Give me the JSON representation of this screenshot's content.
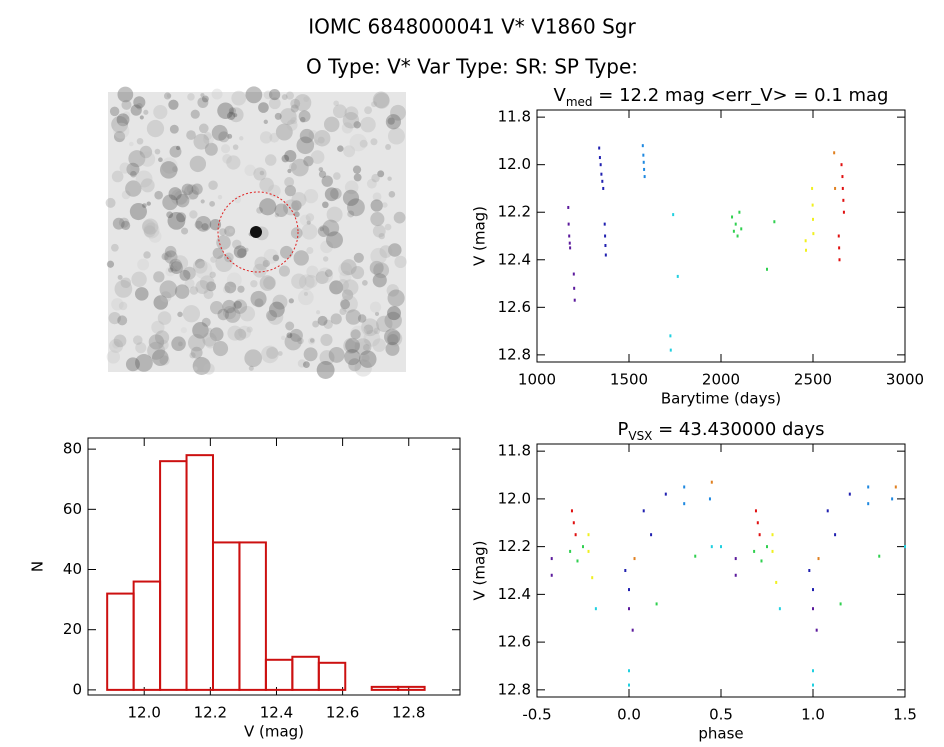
{
  "header": {
    "title": "IOMC 6848000041    V* V1860 Sgr",
    "subtitle": "O Type: V*   Var Type: SR:   SP Type:"
  },
  "chart_data": [
    {
      "type": "scatter",
      "title_parts": [
        "V",
        "med",
        " = 12.2 mag <err_V> = 0.1 mag"
      ],
      "x_label": "Barytime (days)",
      "y_label": "V (mag)",
      "xlim": [
        1000,
        3000
      ],
      "xticks": [
        1000,
        1500,
        2000,
        2500,
        3000
      ],
      "ylim": [
        12.83,
        11.77
      ],
      "yticks": [
        {
          "value": 11.8,
          "label": "11.8"
        },
        {
          "value": 12.0,
          "label": "12.0"
        },
        12.2,
        12.4,
        12.6,
        12.8
      ],
      "series": [
        {
          "color": "#5b1a9c",
          "x": [
            1170,
            1172,
            1175,
            1178,
            1180,
            1200,
            1202,
            1205
          ],
          "values": [
            12.18,
            12.25,
            12.3,
            12.33,
            12.35,
            12.46,
            12.52,
            12.57
          ]
        },
        {
          "color": "#2020b0",
          "x": [
            1338,
            1342,
            1346,
            1350,
            1355,
            1360,
            1368,
            1370,
            1372,
            1374
          ],
          "values": [
            11.93,
            11.97,
            12.0,
            12.04,
            12.07,
            12.1,
            12.25,
            12.3,
            12.34,
            12.38
          ]
        },
        {
          "color": "#1e88e0",
          "x": [
            1575,
            1578,
            1580,
            1582,
            1585
          ],
          "values": [
            11.92,
            11.96,
            11.99,
            12.02,
            12.05
          ]
        },
        {
          "color": "#20d0e0",
          "x": [
            1740,
            1765,
            1725,
            1727
          ],
          "values": [
            12.21,
            12.47,
            12.72,
            12.78
          ]
        },
        {
          "color": "#30d050",
          "x": [
            2060,
            2070,
            2080,
            2090,
            2100,
            2110,
            2250,
            2290
          ],
          "values": [
            12.22,
            12.28,
            12.25,
            12.3,
            12.2,
            12.27,
            12.44,
            12.24
          ]
        },
        {
          "color": "#f0f020",
          "x": [
            2460,
            2462,
            2495,
            2498,
            2500,
            2502
          ],
          "values": [
            12.32,
            12.36,
            12.1,
            12.17,
            12.23,
            12.29
          ]
        },
        {
          "color": "#e08020",
          "x": [
            2615,
            2620
          ],
          "values": [
            11.95,
            12.1
          ]
        },
        {
          "color": "#e01010",
          "x": [
            2655,
            2660,
            2662,
            2665,
            2668,
            2640,
            2642,
            2644
          ],
          "values": [
            12.0,
            12.05,
            12.1,
            12.15,
            12.2,
            12.3,
            12.35,
            12.4
          ]
        }
      ]
    },
    {
      "type": "histogram",
      "x_label": "V (mag)",
      "y_label": "N",
      "color": "#cc1010",
      "bins": [
        11.888,
        11.968,
        12.048,
        12.128,
        12.208,
        12.288,
        12.368,
        12.448,
        12.528,
        12.608,
        12.688,
        12.768,
        12.848
      ],
      "values": [
        32,
        36,
        76,
        78,
        49,
        49,
        10,
        11,
        9,
        0,
        1,
        1
      ],
      "xlim": [
        11.83,
        12.955
      ],
      "xticks": [
        {
          "value": 12.0,
          "label": "12.0"
        },
        12.2,
        12.4,
        12.6,
        12.8
      ],
      "ylim": [
        -1.7,
        83.7
      ],
      "yticks": [
        0,
        20,
        40,
        60,
        80
      ]
    },
    {
      "type": "scatter",
      "title_parts": [
        "P",
        "VSX",
        " = 43.430000 days"
      ],
      "x_label": "phase",
      "y_label": "V (mag)",
      "xlim": [
        -0.5,
        1.5
      ],
      "xticks": [
        -0.5,
        {
          "value": 0.0,
          "label": "0.0"
        },
        0.5,
        {
          "value": 1.0,
          "label": "1.0"
        },
        1.5
      ],
      "ylim": [
        12.83,
        11.77
      ],
      "yticks": [
        {
          "value": 11.8,
          "label": "11.8"
        },
        {
          "value": 12.0,
          "label": "12.0"
        },
        12.2,
        12.4,
        12.6,
        12.8
      ],
      "series": [
        {
          "color": "#5b1a9c",
          "x": [
            -0.42,
            -0.42,
            0.58,
            0.58,
            0.0,
            0.02,
            1.0,
            1.02
          ],
          "values": [
            12.25,
            12.32,
            12.25,
            12.32,
            12.46,
            12.55,
            12.46,
            12.55
          ]
        },
        {
          "color": "#2020b0",
          "x": [
            -0.02,
            0.0,
            0.08,
            0.12,
            0.2,
            0.98,
            1.0,
            1.08,
            1.12,
            1.2
          ],
          "values": [
            12.3,
            12.38,
            12.05,
            12.15,
            11.98,
            12.3,
            12.38,
            12.05,
            12.15,
            11.98
          ]
        },
        {
          "color": "#1e88e0",
          "x": [
            0.3,
            0.3,
            0.44,
            1.3,
            1.3,
            1.43
          ],
          "values": [
            11.95,
            12.02,
            12.0,
            11.95,
            12.02,
            12.0
          ]
        },
        {
          "color": "#20d0e0",
          "x": [
            -0.18,
            0.82,
            0.0,
            0.0,
            1.0,
            1.0,
            0.45,
            0.5,
            1.5
          ],
          "values": [
            12.46,
            12.46,
            12.72,
            12.78,
            12.72,
            12.78,
            12.2,
            12.2,
            12.2
          ]
        },
        {
          "color": "#30d050",
          "x": [
            -0.32,
            -0.28,
            -0.25,
            0.68,
            0.72,
            0.75,
            0.15,
            1.15,
            0.36,
            1.36
          ],
          "values": [
            12.22,
            12.26,
            12.2,
            12.22,
            12.26,
            12.2,
            12.44,
            12.44,
            12.24,
            12.24
          ]
        },
        {
          "color": "#f0f020",
          "x": [
            -0.22,
            -0.22,
            -0.2,
            0.78,
            0.78,
            0.8
          ],
          "values": [
            12.15,
            12.22,
            12.33,
            12.15,
            12.22,
            12.35
          ]
        },
        {
          "color": "#e08020",
          "x": [
            0.45,
            1.45,
            0.03,
            1.03
          ],
          "values": [
            11.93,
            11.95,
            12.25,
            12.25
          ]
        },
        {
          "color": "#e01010",
          "x": [
            -0.31,
            -0.3,
            -0.29,
            0.69,
            0.7,
            0.71
          ],
          "values": [
            12.05,
            12.1,
            12.15,
            12.05,
            12.1,
            12.15
          ]
        }
      ]
    }
  ]
}
